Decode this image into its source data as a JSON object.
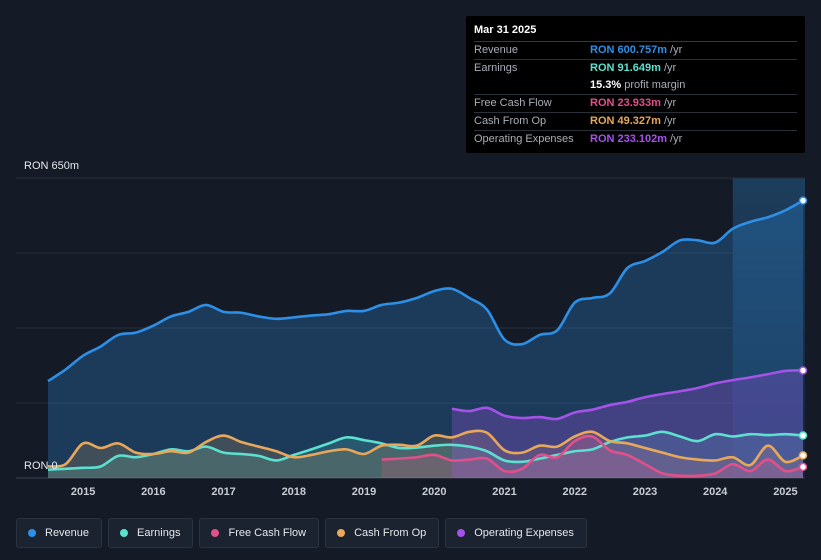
{
  "tooltip": {
    "date": "Mar 31 2025",
    "rows": [
      {
        "label": "Revenue",
        "value": "RON 600.757m",
        "unit": "/yr",
        "color": "#2d8fe6"
      },
      {
        "label": "Earnings",
        "value": "RON 91.649m",
        "unit": "/yr",
        "color": "#5ce0cf"
      },
      {
        "label": "",
        "value": "15.3%",
        "unit": "profit margin",
        "color": "#ffffff"
      },
      {
        "label": "Free Cash Flow",
        "value": "RON 23.933m",
        "unit": "/yr",
        "color": "#e0508a"
      },
      {
        "label": "Cash From Op",
        "value": "RON 49.327m",
        "unit": "/yr",
        "color": "#e8a85a"
      },
      {
        "label": "Operating Expenses",
        "value": "RON 233.102m",
        "unit": "/yr",
        "color": "#a552e8"
      }
    ]
  },
  "legend": [
    {
      "label": "Revenue",
      "color": "#2d8fe6"
    },
    {
      "label": "Earnings",
      "color": "#5ce0cf"
    },
    {
      "label": "Free Cash Flow",
      "color": "#e0508a"
    },
    {
      "label": "Cash From Op",
      "color": "#e8a85a"
    },
    {
      "label": "Operating Expenses",
      "color": "#a552e8"
    }
  ],
  "chart_data": {
    "type": "area",
    "currency": "RON",
    "unit": "m",
    "ylim": [
      0,
      650
    ],
    "y_tick_labels": [
      "RON 0",
      "RON 650m"
    ],
    "x_tick_labels": [
      "2015",
      "2016",
      "2017",
      "2018",
      "2019",
      "2020",
      "2021",
      "2022",
      "2023",
      "2024",
      "2025"
    ],
    "highlight_start": 2024.25,
    "series": [
      {
        "name": "Revenue",
        "color": "#2d8fe6",
        "x": [
          2014.5,
          2014.75,
          2015.0,
          2015.25,
          2015.5,
          2015.75,
          2016.0,
          2016.25,
          2016.5,
          2016.75,
          2017.0,
          2017.25,
          2017.5,
          2017.75,
          2018.0,
          2018.25,
          2018.5,
          2018.75,
          2019.0,
          2019.25,
          2019.5,
          2019.75,
          2020.0,
          2020.25,
          2020.5,
          2020.75,
          2021.0,
          2021.25,
          2021.5,
          2021.75,
          2022.0,
          2022.25,
          2022.5,
          2022.75,
          2023.0,
          2023.25,
          2023.5,
          2023.75,
          2024.0,
          2024.25,
          2024.5,
          2024.75,
          2025.0,
          2025.25
        ],
        "values": [
          210,
          235,
          265,
          285,
          310,
          315,
          330,
          350,
          360,
          375,
          360,
          358,
          350,
          345,
          348,
          352,
          355,
          362,
          362,
          375,
          380,
          390,
          405,
          410,
          390,
          365,
          300,
          290,
          310,
          320,
          380,
          390,
          400,
          455,
          470,
          490,
          515,
          515,
          510,
          540,
          555,
          565,
          580,
          601
        ]
      },
      {
        "name": "Earnings",
        "color": "#5ce0cf",
        "x": [
          2014.5,
          2014.75,
          2015.0,
          2015.25,
          2015.5,
          2015.75,
          2016.0,
          2016.25,
          2016.5,
          2016.75,
          2017.0,
          2017.25,
          2017.5,
          2017.75,
          2018.0,
          2018.25,
          2018.5,
          2018.75,
          2019.0,
          2019.25,
          2019.5,
          2019.75,
          2020.0,
          2020.25,
          2020.5,
          2020.75,
          2021.0,
          2021.25,
          2021.5,
          2021.75,
          2022.0,
          2022.25,
          2022.5,
          2022.75,
          2023.0,
          2023.25,
          2023.5,
          2023.75,
          2024.0,
          2024.25,
          2024.5,
          2024.75,
          2025.0,
          2025.25
        ],
        "values": [
          18,
          20,
          22,
          25,
          48,
          45,
          52,
          62,
          58,
          68,
          55,
          52,
          48,
          38,
          50,
          62,
          75,
          88,
          82,
          75,
          65,
          66,
          70,
          72,
          68,
          58,
          38,
          35,
          42,
          50,
          58,
          62,
          78,
          88,
          92,
          100,
          90,
          80,
          95,
          90,
          95,
          93,
          95,
          92
        ]
      },
      {
        "name": "Free Cash Flow",
        "color": "#e0508a",
        "x": [
          2019.25,
          2019.5,
          2019.75,
          2020.0,
          2020.25,
          2020.5,
          2020.75,
          2021.0,
          2021.25,
          2021.5,
          2021.75,
          2022.0,
          2022.25,
          2022.5,
          2022.75,
          2023.0,
          2023.25,
          2023.5,
          2023.75,
          2024.0,
          2024.25,
          2024.5,
          2024.75,
          2025.0,
          2025.25
        ],
        "values": [
          40,
          42,
          45,
          50,
          38,
          40,
          42,
          15,
          20,
          50,
          45,
          80,
          90,
          60,
          50,
          30,
          10,
          5,
          5,
          10,
          30,
          15,
          40,
          15,
          24
        ]
      },
      {
        "name": "Cash From Op",
        "color": "#e8a85a",
        "x": [
          2014.5,
          2014.75,
          2015.0,
          2015.25,
          2015.5,
          2015.75,
          2016.0,
          2016.25,
          2016.5,
          2016.75,
          2017.0,
          2017.25,
          2017.5,
          2017.75,
          2018.0,
          2018.25,
          2018.5,
          2018.75,
          2019.0,
          2019.25,
          2019.5,
          2019.75,
          2020.0,
          2020.25,
          2020.5,
          2020.75,
          2021.0,
          2021.25,
          2021.5,
          2021.75,
          2022.0,
          2022.25,
          2022.5,
          2022.75,
          2023.0,
          2023.25,
          2023.5,
          2023.75,
          2024.0,
          2024.25,
          2024.5,
          2024.75,
          2025.0,
          2025.25
        ],
        "values": [
          25,
          30,
          75,
          65,
          75,
          55,
          52,
          58,
          55,
          78,
          92,
          78,
          68,
          58,
          45,
          50,
          58,
          62,
          52,
          70,
          72,
          70,
          92,
          88,
          100,
          98,
          60,
          55,
          70,
          68,
          90,
          100,
          80,
          75,
          65,
          55,
          45,
          40,
          38,
          45,
          28,
          70,
          35,
          49
        ]
      },
      {
        "name": "Operating Expenses",
        "color": "#a552e8",
        "x": [
          2020.25,
          2020.5,
          2020.75,
          2021.0,
          2021.25,
          2021.5,
          2021.75,
          2022.0,
          2022.25,
          2022.5,
          2022.75,
          2023.0,
          2023.25,
          2023.5,
          2023.75,
          2024.0,
          2024.25,
          2024.5,
          2024.75,
          2025.0,
          2025.25
        ],
        "values": [
          150,
          145,
          152,
          135,
          130,
          132,
          128,
          142,
          148,
          158,
          165,
          175,
          182,
          188,
          195,
          205,
          212,
          218,
          225,
          232,
          233
        ]
      }
    ]
  }
}
